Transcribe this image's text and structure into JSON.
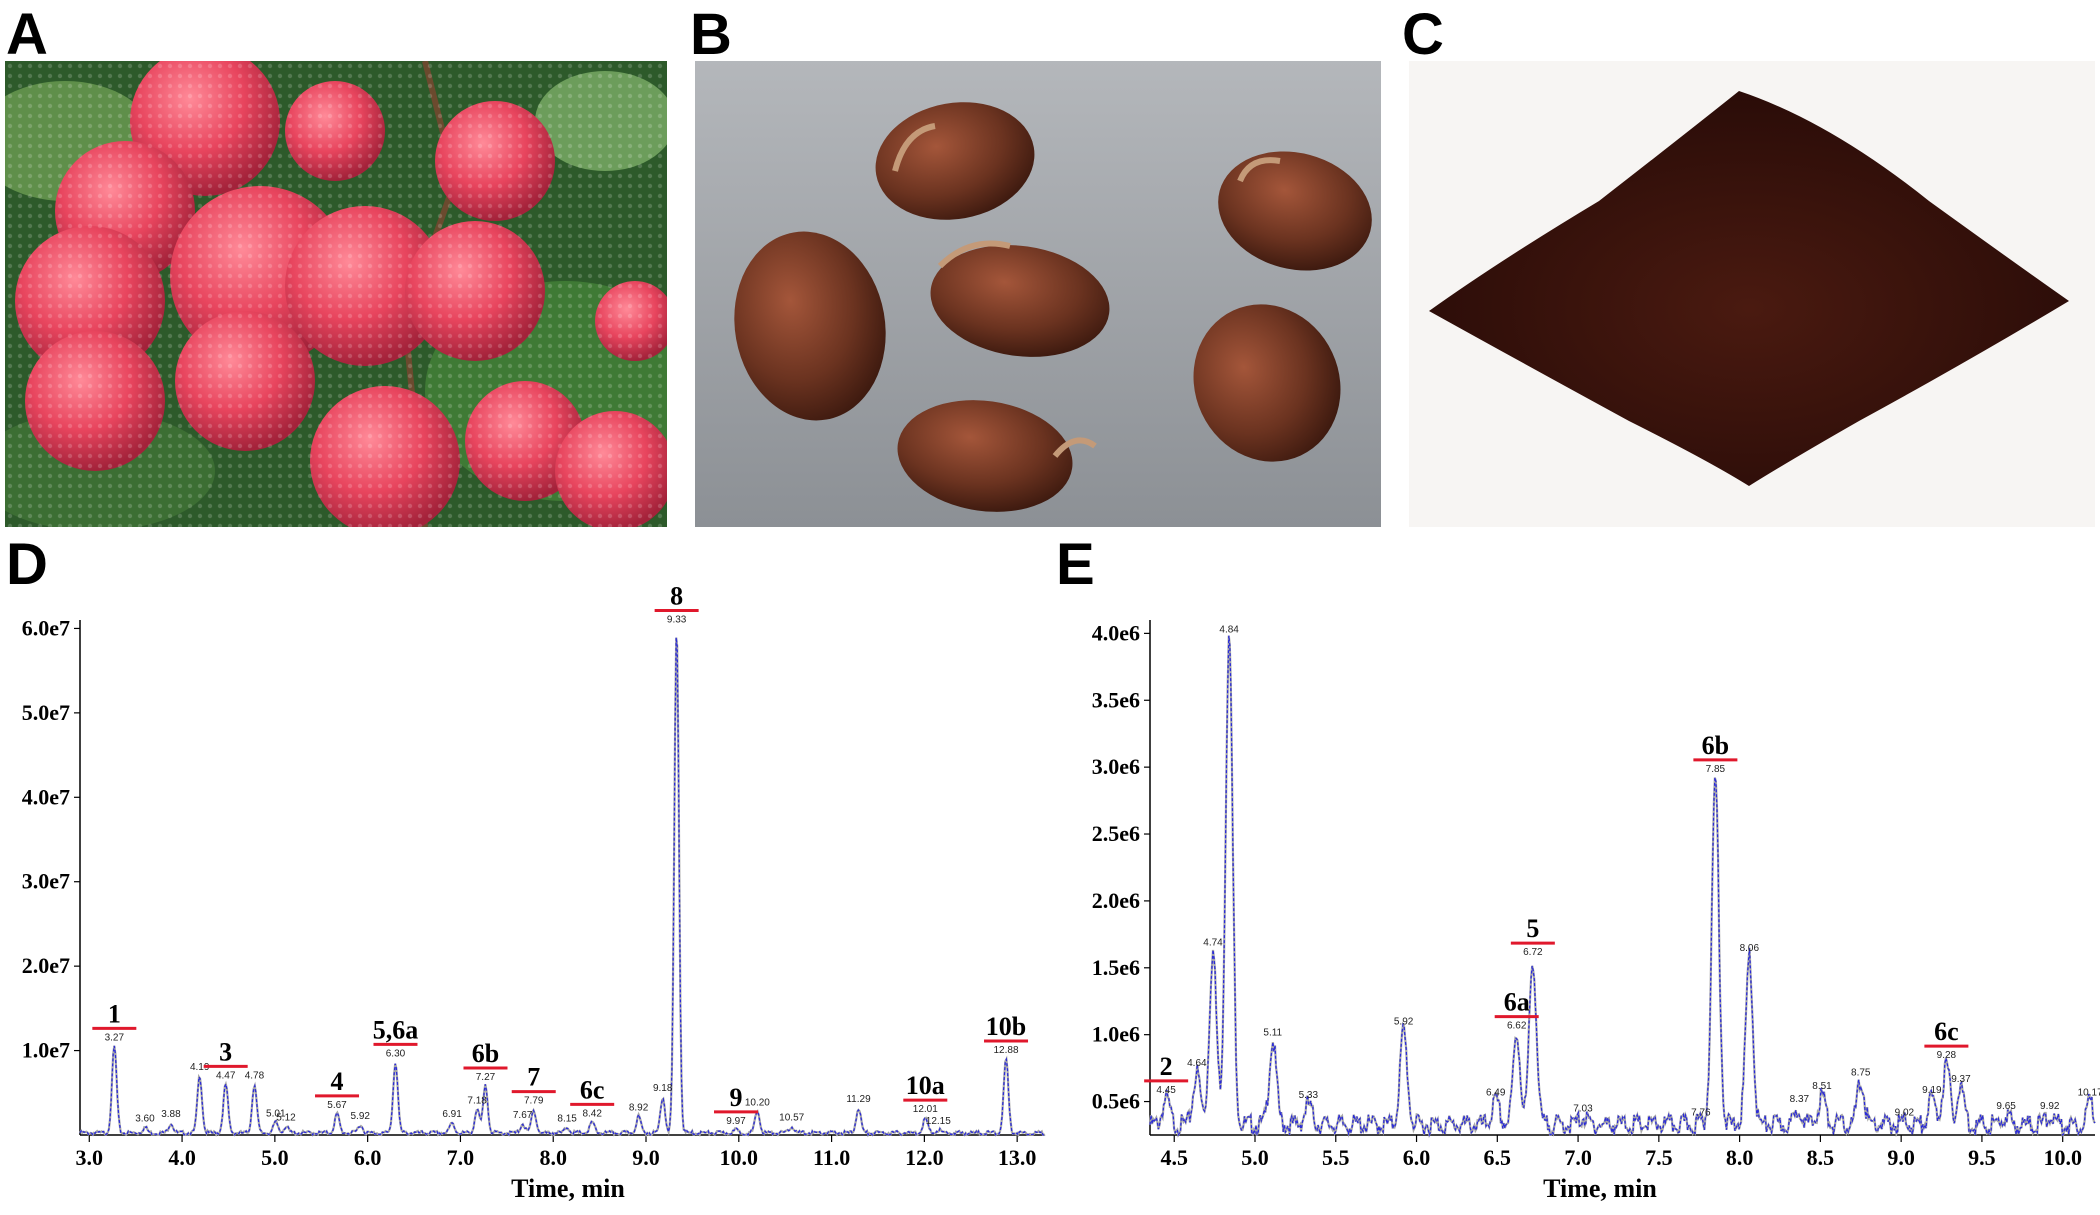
{
  "panels": {
    "a": "A",
    "b": "B",
    "c": "C",
    "d": "D",
    "e": "E"
  },
  "photos": {
    "a": {
      "subject": "lychee-fruit-cluster",
      "colors": {
        "fruit": "#e8455e",
        "leaf": "#2f5a2a"
      }
    },
    "b": {
      "subject": "lychee-seeds",
      "colors": {
        "background": "#9a9ea3",
        "seed": "#6b3320"
      }
    },
    "c": {
      "subject": "seed-extract-powder",
      "colors": {
        "background": "#f7f5f3",
        "powder": "#3a120c"
      }
    }
  },
  "colors": {
    "trace_blue": "#2b2bd8",
    "trace_grey": "#a8a8a8",
    "marker_red": "#e0182c"
  },
  "chart_data": [
    {
      "type": "line",
      "panel": "D",
      "xlabel": "Time, min",
      "xlim": [
        2.9,
        13.3
      ],
      "ylim": [
        0,
        61000000.0
      ],
      "xticks": [
        "3.0",
        "4.0",
        "5.0",
        "6.0",
        "7.0",
        "8.0",
        "9.0",
        "10.0",
        "11.0",
        "12.0",
        "13.0"
      ],
      "yticks": [
        {
          "v": 10000000.0,
          "label": "1.0e7"
        },
        {
          "v": 20000000.0,
          "label": "2.0e7"
        },
        {
          "v": 30000000.0,
          "label": "3.0e7"
        },
        {
          "v": 40000000.0,
          "label": "4.0e7"
        },
        {
          "v": 50000000.0,
          "label": "5.0e7"
        },
        {
          "v": 60000000.0,
          "label": "6.0e7"
        }
      ],
      "peaks": [
        {
          "t": 3.27,
          "h": 10500000.0,
          "rt": "3.27",
          "id": "1",
          "marker": true
        },
        {
          "t": 3.6,
          "h": 900000.0,
          "rt": "3.60"
        },
        {
          "t": 3.88,
          "h": 1400000.0,
          "rt": "3.88"
        },
        {
          "t": 4.19,
          "h": 7000000.0,
          "rt": "4.19"
        },
        {
          "t": 4.47,
          "h": 6000000.0,
          "rt": "4.47",
          "id": "3",
          "marker": true
        },
        {
          "t": 4.78,
          "h": 6000000.0,
          "rt": "4.78"
        },
        {
          "t": 5.01,
          "h": 1500000.0,
          "rt": "5.01"
        },
        {
          "t": 5.12,
          "h": 1000000.0,
          "rt": "5.12"
        },
        {
          "t": 5.67,
          "h": 2500000.0,
          "rt": "5.67",
          "id": "4",
          "marker": true
        },
        {
          "t": 5.92,
          "h": 1200000.0,
          "rt": "5.92"
        },
        {
          "t": 6.3,
          "h": 8600000.0,
          "rt": "6.30",
          "id": "5,6a",
          "marker": true
        },
        {
          "t": 6.91,
          "h": 1400000.0,
          "rt": "6.91"
        },
        {
          "t": 7.18,
          "h": 3000000.0,
          "rt": "7.18"
        },
        {
          "t": 7.27,
          "h": 5800000.0,
          "rt": "7.27",
          "id": "6b",
          "marker": true
        },
        {
          "t": 7.67,
          "h": 1300000.0,
          "rt": "7.67"
        },
        {
          "t": 7.79,
          "h": 3000000.0,
          "rt": "7.79",
          "id": "7",
          "marker": true
        },
        {
          "t": 8.15,
          "h": 900000.0,
          "rt": "8.15"
        },
        {
          "t": 8.42,
          "h": 1500000.0,
          "rt": "8.42",
          "id": "6c",
          "marker": true
        },
        {
          "t": 8.92,
          "h": 2200000.0,
          "rt": "8.92"
        },
        {
          "t": 9.18,
          "h": 4500000.0,
          "rt": "9.18"
        },
        {
          "t": 9.33,
          "h": 60000000.0,
          "rt": "9.33",
          "id": "8",
          "marker": true
        },
        {
          "t": 9.97,
          "h": 600000.0,
          "rt": "9.97",
          "id": "9",
          "marker": true
        },
        {
          "t": 10.2,
          "h": 2800000.0,
          "rt": "10.20"
        },
        {
          "t": 10.57,
          "h": 1000000.0,
          "rt": "10.57"
        },
        {
          "t": 11.29,
          "h": 3200000.0,
          "rt": "11.29"
        },
        {
          "t": 12.01,
          "h": 2000000.0,
          "rt": "12.01",
          "id": "10a",
          "marker": true
        },
        {
          "t": 12.15,
          "h": 600000.0,
          "rt": "12.15"
        },
        {
          "t": 12.88,
          "h": 9000000.0,
          "rt": "12.88",
          "id": "10b",
          "marker": true
        }
      ]
    },
    {
      "type": "line",
      "panel": "E",
      "xlabel": "Time, min",
      "xlim": [
        4.35,
        10.2
      ],
      "ylim": [
        250000.0,
        4100000.0
      ],
      "xticks": [
        "4.5",
        "5.0",
        "5.5",
        "6.0",
        "6.5",
        "7.0",
        "7.5",
        "8.0",
        "8.5",
        "9.0",
        "9.5",
        "10.0"
      ],
      "yticks": [
        {
          "v": 500000.0,
          "label": "0.5e6"
        },
        {
          "v": 1000000.0,
          "label": "1.0e6"
        },
        {
          "v": 1500000.0,
          "label": "1.5e6"
        },
        {
          "v": 2000000.0,
          "label": "2.0e6"
        },
        {
          "v": 2500000.0,
          "label": "2.5e6"
        },
        {
          "v": 3000000.0,
          "label": "3.0e6"
        },
        {
          "v": 3500000.0,
          "label": "3.5e6"
        },
        {
          "v": 4000000.0,
          "label": "4.0e6"
        }
      ],
      "peaks": [
        {
          "t": 4.45,
          "h": 520000.0,
          "rt": "4.45",
          "id": "2",
          "marker": true
        },
        {
          "t": 4.64,
          "h": 720000.0,
          "rt": "4.64"
        },
        {
          "t": 4.74,
          "h": 1620000.0,
          "rt": "4.74"
        },
        {
          "t": 4.84,
          "h": 3960000.0,
          "rt": "4.84"
        },
        {
          "t": 5.11,
          "h": 950000.0,
          "rt": "5.11"
        },
        {
          "t": 5.33,
          "h": 480000.0,
          "rt": "5.33"
        },
        {
          "t": 5.92,
          "h": 1030000.0,
          "rt": "5.92"
        },
        {
          "t": 6.49,
          "h": 500000.0,
          "rt": "6.49"
        },
        {
          "t": 6.62,
          "h": 1000000.0,
          "rt": "6.62",
          "id": "6a",
          "marker": true
        },
        {
          "t": 6.72,
          "h": 1550000.0,
          "rt": "6.72",
          "id": "5",
          "marker": true
        },
        {
          "t": 7.03,
          "h": 380000.0,
          "rt": "7.03"
        },
        {
          "t": 7.76,
          "h": 350000.0,
          "rt": "7.76"
        },
        {
          "t": 7.85,
          "h": 2920000.0,
          "rt": "7.85",
          "id": "6b",
          "marker": true
        },
        {
          "t": 8.06,
          "h": 1580000.0,
          "rt": "8.06"
        },
        {
          "t": 8.37,
          "h": 450000.0,
          "rt": "8.37"
        },
        {
          "t": 8.51,
          "h": 550000.0,
          "rt": "8.51"
        },
        {
          "t": 8.75,
          "h": 650000.0,
          "rt": "8.75"
        },
        {
          "t": 9.02,
          "h": 350000.0,
          "rt": "9.02"
        },
        {
          "t": 9.19,
          "h": 520000.0,
          "rt": "9.19"
        },
        {
          "t": 9.28,
          "h": 780000.0,
          "rt": "9.28",
          "id": "6c",
          "marker": true
        },
        {
          "t": 9.37,
          "h": 600000.0,
          "rt": "9.37"
        },
        {
          "t": 9.65,
          "h": 400000.0,
          "rt": "9.65"
        },
        {
          "t": 9.92,
          "h": 400000.0,
          "rt": "9.92"
        },
        {
          "t": 10.17,
          "h": 500000.0,
          "rt": "10.17"
        }
      ]
    }
  ]
}
